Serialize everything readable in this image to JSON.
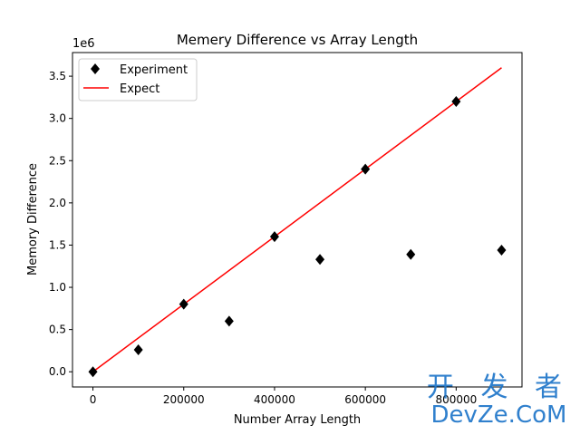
{
  "chart_data": {
    "type": "scatter",
    "title": "Memery Difference vs Array Length",
    "xlabel": "Number Array Length",
    "ylabel": "Memory Difference",
    "y_offset_label": "1e6",
    "xlim": [
      -45000,
      945000
    ],
    "ylim": [
      -180000,
      3780000
    ],
    "x_ticks": [
      0,
      200000,
      400000,
      600000,
      800000
    ],
    "x_tick_labels": [
      "0",
      "200000",
      "400000",
      "600000",
      "800000"
    ],
    "y_ticks": [
      0,
      500000,
      1000000,
      1500000,
      2000000,
      2500000,
      3000000,
      3500000
    ],
    "y_tick_labels": [
      "0.0",
      "0.5",
      "1.0",
      "1.5",
      "2.0",
      "2.5",
      "3.0",
      "3.5"
    ],
    "legend_position": "top-left",
    "grid": false,
    "series": [
      {
        "name": "Experiment",
        "kind": "scatter",
        "marker": "diamond",
        "color": "#000000",
        "x": [
          0,
          100000,
          200000,
          300000,
          400000,
          500000,
          600000,
          700000,
          800000,
          900000
        ],
        "y": [
          0,
          260000,
          800000,
          600000,
          1600000,
          1330000,
          2400000,
          1390000,
          3200000,
          1440000
        ]
      },
      {
        "name": "Expect",
        "kind": "line",
        "color": "#ff0000",
        "x": [
          0,
          900000
        ],
        "y": [
          0,
          3600000
        ]
      }
    ]
  },
  "watermark": {
    "line1": "开 发 者",
    "line2": "DevZe.CoM"
  }
}
